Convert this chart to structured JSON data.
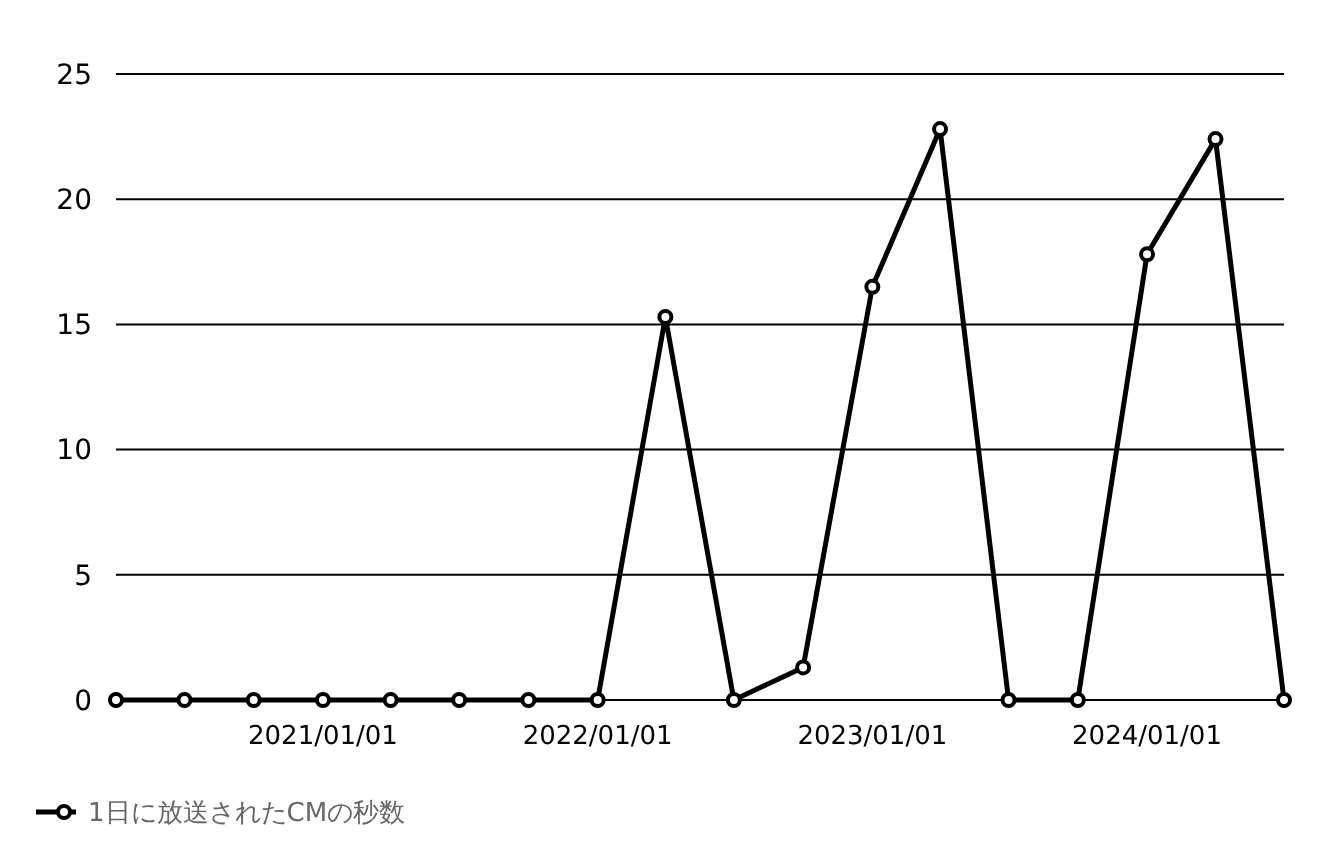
{
  "chart_data": {
    "type": "line",
    "x": [
      "2020-04-01",
      "2020-07-01",
      "2020-10-01",
      "2021-01-01",
      "2021-04-01",
      "2021-07-01",
      "2021-10-01",
      "2022-01-01",
      "2022-04-01",
      "2022-07-01",
      "2022-10-01",
      "2023-01-01",
      "2023-04-01",
      "2023-07-01",
      "2023-10-01",
      "2024-01-01",
      "2024-04-01",
      "2024-07-01"
    ],
    "series": [
      {
        "name": "1日に放送されたCMの秒数",
        "color": "#000000",
        "values": [
          0,
          0,
          0,
          0,
          0,
          0,
          0,
          0,
          15.3,
          0,
          1.3,
          16.5,
          22.8,
          0,
          0,
          17.8,
          22.4,
          0
        ]
      }
    ],
    "xlim": [
      "2020-04-01",
      "2024-07-01"
    ],
    "xticks": [
      {
        "value": "2021-01-01",
        "label": "2021/01/01"
      },
      {
        "value": "2022-01-01",
        "label": "2022/01/01"
      },
      {
        "value": "2023-01-01",
        "label": "2023/01/01"
      },
      {
        "value": "2024-01-01",
        "label": "2024/01/01"
      }
    ],
    "ylim": [
      0,
      25
    ],
    "yticks": [
      0,
      5,
      10,
      15,
      20,
      25
    ],
    "grid": "y",
    "legend": "bottom left",
    "marker": "circle",
    "line_style": "solid"
  }
}
